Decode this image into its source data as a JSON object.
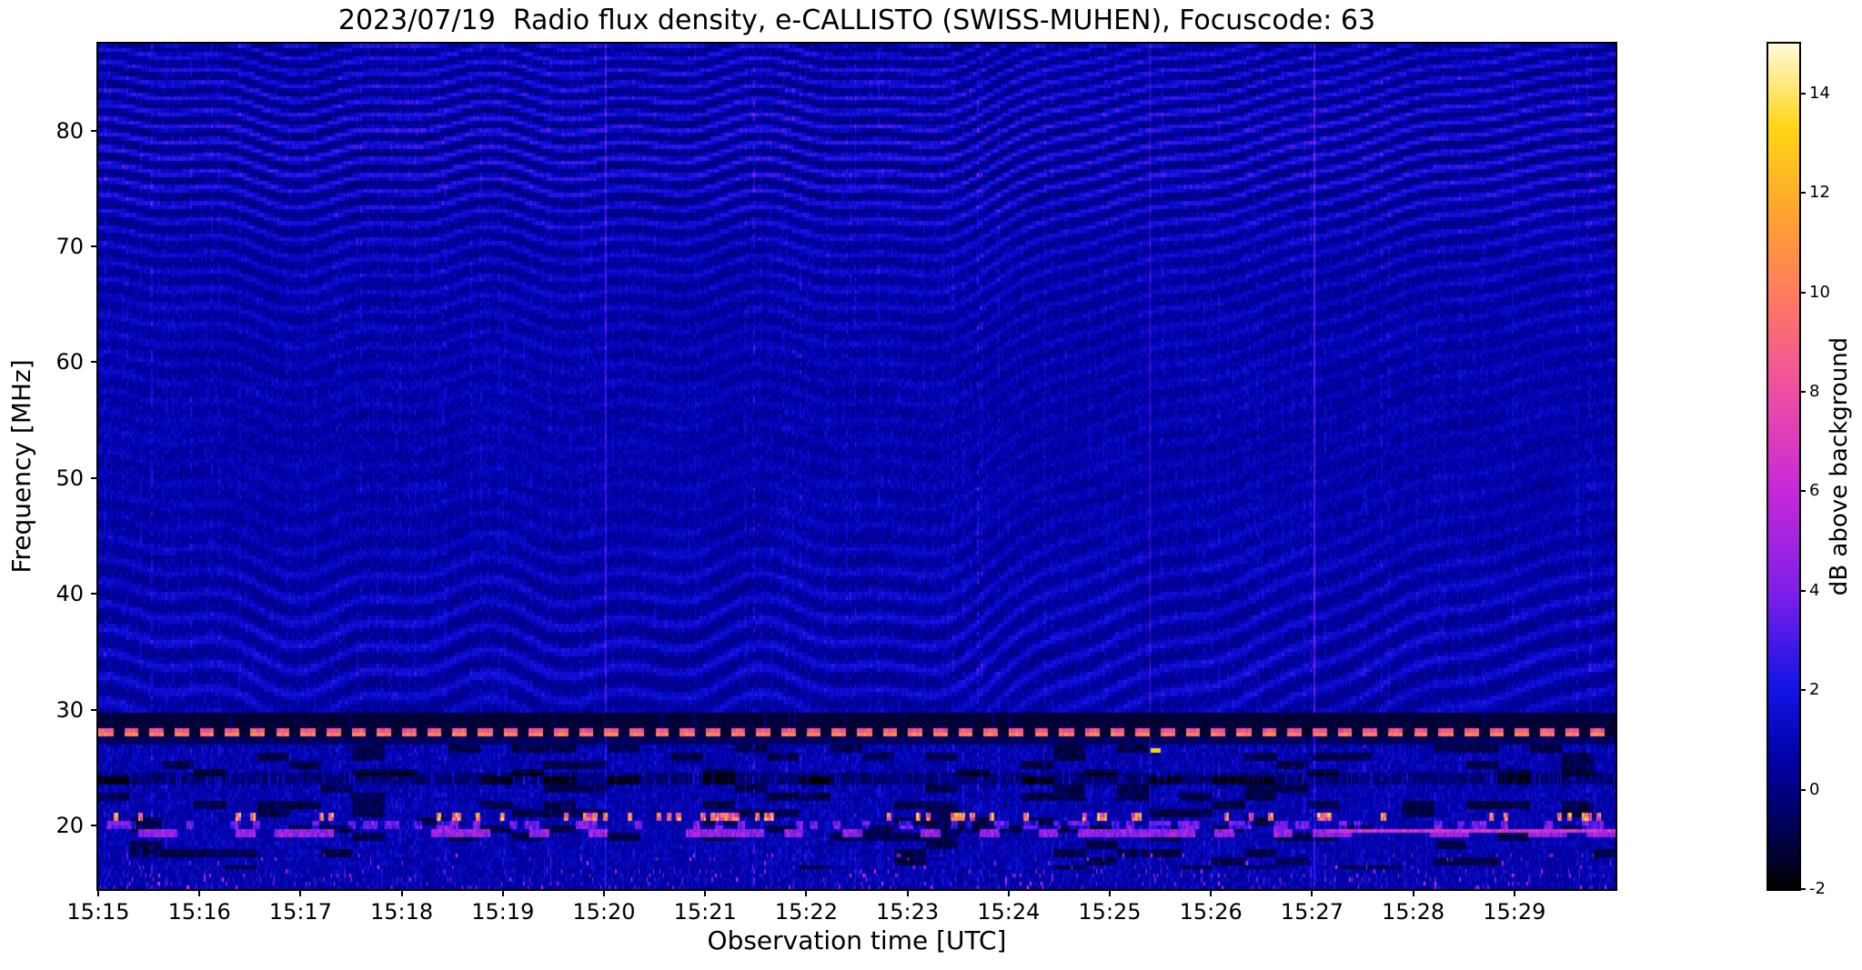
{
  "title": "2023/07/19  Radio flux density, e-CALLISTO (SWISS-MUHEN), Focuscode: 63",
  "axes": {
    "xlabel": "Observation time [UTC]",
    "ylabel": "Frequency [MHz]",
    "x_ticks": [
      "15:15",
      "15:16",
      "15:17",
      "15:18",
      "15:19",
      "15:20",
      "15:21",
      "15:22",
      "15:23",
      "15:24",
      "15:25",
      "15:26",
      "15:27",
      "15:28",
      "15:29"
    ],
    "y_ticks": [
      20,
      30,
      40,
      50,
      60,
      70,
      80
    ]
  },
  "colorbar": {
    "label": "dB above background",
    "ticks": [
      14,
      12,
      10,
      8,
      6,
      4,
      2,
      0,
      -2
    ],
    "vmin": -2,
    "vmax": 15,
    "stops": [
      [
        0,
        "#000003"
      ],
      [
        0.08,
        "#00005e"
      ],
      [
        0.15,
        "#0000a6"
      ],
      [
        0.24,
        "#1414e6"
      ],
      [
        0.35,
        "#7d1fe8"
      ],
      [
        0.47,
        "#c728d8"
      ],
      [
        0.59,
        "#ef4fa2"
      ],
      [
        0.7,
        "#ff7a60"
      ],
      [
        0.8,
        "#ffa42e"
      ],
      [
        0.9,
        "#ffd514"
      ],
      [
        1,
        "#fffadc"
      ]
    ]
  },
  "chart_data": {
    "type": "heatmap",
    "date": "2023/07/19",
    "instrument": "e-CALLISTO (SWISS-MUHEN)",
    "focuscode": 63,
    "title": "2023/07/19  Radio flux density, e-CALLISTO (SWISS-MUHEN), Focuscode: 63",
    "x": {
      "label": "Observation time [UTC]",
      "start": "15:15",
      "end": "15:30",
      "minutes": 15
    },
    "y": {
      "label": "Frequency [MHz]",
      "min": 14.5,
      "max": 87.5
    },
    "z": {
      "label": "dB above background",
      "min": -2,
      "max": 15
    },
    "features": [
      "Dark blue noisy background near 0-1 dB over whole band",
      "Strong wavy horizontal interference fringes 72-87 MHz and 30-42 MHz, weak 45-70 MHz",
      "Fringes become fine diagonal stripes after about 15:22.5",
      "Bright magenta dashed calibration line at 28 MHz with black band just above it",
      "Noisy RFI band below 27 MHz with black patches",
      "Bright yellow/orange intermittent RFI dashes near 20.5-21.2 MHz",
      "Pink horizontal RFI streak near 19-20 MHz, continuous after 15:27",
      "Single bright yellow dot near 26.5 MHz around 15:25.5",
      "Occasional thin vertical RFI lines spanning all frequencies"
    ],
    "synthesis": {
      "fringe_amplitude_breakpoints": [
        [
          87.5,
          1.35
        ],
        [
          84,
          1.6
        ],
        [
          80,
          1.9
        ],
        [
          76,
          1.85
        ],
        [
          73,
          1.5
        ],
        [
          70,
          1.0
        ],
        [
          66,
          0.75
        ],
        [
          60,
          0.5
        ],
        [
          52,
          0.32
        ],
        [
          46,
          0.45
        ],
        [
          42,
          0.8
        ],
        [
          38,
          1.05
        ],
        [
          33,
          1.15
        ],
        [
          30.5,
          0.95
        ],
        [
          29,
          0.4
        ],
        [
          28.4,
          0.15
        ]
      ],
      "calibration_line_mhz": 28.0,
      "calibration_dash_period_s": 15,
      "calibration_dash_duty": 0.56,
      "black_band_mhz": [
        28.42,
        29.7
      ],
      "diagonal_fringe_start_min": 7.3,
      "bright_rfi_band_mhz": [
        20.5,
        21.2
      ],
      "pink_streak_band_mhz": [
        19.1,
        19.85
      ],
      "dark_strip_mhz": [
        23.7,
        24.7
      ],
      "yellow_dot": {
        "t_min": 10.45,
        "f_mhz": 26.5
      }
    }
  }
}
